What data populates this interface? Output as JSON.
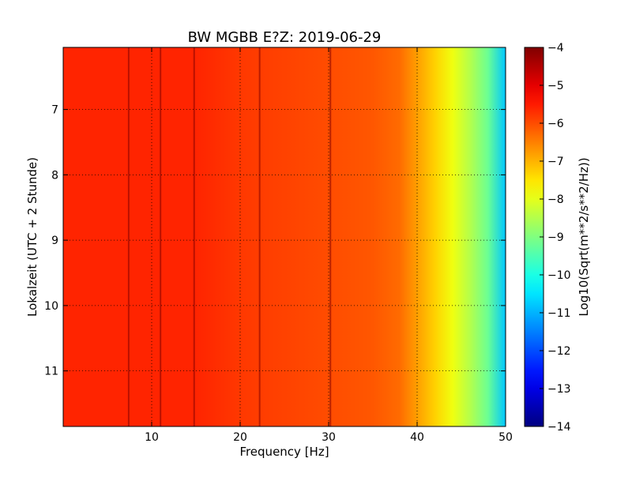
{
  "chart_data": {
    "type": "heatmap",
    "title": "BW MGBB E?Z: 2019-06-29",
    "xlabel": "Frequency [Hz]",
    "ylabel": "Lokalzeit (UTC + 2 Stunde)",
    "xlim": [
      0,
      50
    ],
    "ylim": [
      6.05,
      11.85
    ],
    "y_inverted": true,
    "x_ticks": [
      10,
      20,
      30,
      40,
      50
    ],
    "x_tick_labels": [
      "10",
      "20",
      "30",
      "40",
      "50"
    ],
    "y_ticks": [
      7,
      8,
      9,
      10,
      11
    ],
    "y_tick_labels": [
      "7",
      "8",
      "9",
      "10",
      "11"
    ],
    "grid": true,
    "grid_style": "dotted",
    "colormap": "jet",
    "colorbar": {
      "label": "Log10(Sqrt(m**2/s**2/Hz))",
      "min": -14,
      "max": -4,
      "ticks": [
        -4,
        -5,
        -6,
        -7,
        -8,
        -9,
        -10,
        -11,
        -12,
        -13,
        -14
      ],
      "tick_labels": [
        "−4",
        "−5",
        "−6",
        "−7",
        "−8",
        "−9",
        "−10",
        "−11",
        "−12",
        "−13",
        "−14"
      ]
    },
    "spectrum_profile": {
      "frequency_hz": [
        0,
        5,
        10,
        15,
        20,
        25,
        30,
        35,
        38,
        40,
        42,
        44,
        46,
        48,
        50
      ],
      "log10_amplitude": [
        -5.6,
        -5.6,
        -5.6,
        -5.6,
        -5.8,
        -5.9,
        -6.0,
        -6.1,
        -6.3,
        -6.8,
        -7.3,
        -7.9,
        -8.5,
        -9.2,
        -10.8
      ]
    },
    "persistent_lines_hz": [
      7.4,
      11.0,
      14.8,
      22.2,
      30.2
    ],
    "colors": {
      "jet_dark_red": "#800000",
      "jet_red": "#ff0000",
      "jet_orange": "#ff8000",
      "jet_yellow": "#ffff00",
      "jet_green": "#80ff80",
      "jet_cyan": "#00ffff",
      "jet_blue": "#0000ff",
      "jet_dark_blue": "#000080"
    }
  }
}
